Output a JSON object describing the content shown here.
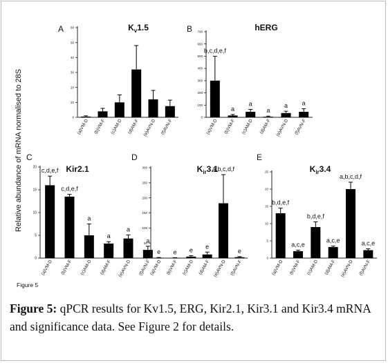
{
  "figure": {
    "bottom_label": "Figure 5",
    "y_axis_label": "Relative abundance of mRNA normalised to 28S",
    "caption_label": "Figure 5:",
    "caption_text": " qPCR results for Kv1.5, ERG, Kir2.1, Kir3.1 and Kir3.4 mRNA and significance data. See Figure 2 for details.",
    "colors": {
      "bar": "#000000",
      "axis": "#222222",
      "text": "#111111",
      "frame": "#b8bcc4"
    }
  },
  "chart_data": [
    {
      "type": "bar",
      "panel": "A",
      "title": "Kv1.5",
      "title_main": "K",
      "title_sub": "v",
      "title_rest": "1.5",
      "categories": [
        "(a)VM-D",
        "(b)VM-F",
        "(c)AM-D",
        "(d)AM-F",
        "(e)AVN-D",
        "(f)AVN-F"
      ],
      "values": [
        0.5,
        4,
        10,
        32,
        12,
        7.5
      ],
      "errors": [
        0.5,
        2,
        5,
        16,
        6,
        4
      ],
      "yticks": [
        0,
        10,
        20,
        30,
        40,
        50,
        60
      ],
      "ylim": [
        0,
        60
      ],
      "significance": [
        "",
        "",
        "",
        "",
        "",
        ""
      ]
    },
    {
      "type": "bar",
      "panel": "B",
      "title": "hERG",
      "title_main": "hERG",
      "title_sub": "",
      "title_rest": "",
      "categories": [
        "(a)VM-D",
        "(b)VM-F",
        "(c)AM-D",
        "(d)AM-F",
        "(e)AVN-D",
        "(f)AVN-F"
      ],
      "values": [
        300,
        15,
        45,
        5,
        35,
        45
      ],
      "errors": [
        200,
        8,
        20,
        5,
        15,
        25
      ],
      "yticks": [
        0,
        100,
        200,
        300,
        400,
        500,
        600,
        700
      ],
      "ylim": [
        0,
        700
      ],
      "significance": [
        "b,c,d,e,f",
        "a",
        "a",
        "a",
        "a",
        "a"
      ]
    },
    {
      "type": "bar",
      "panel": "C",
      "title": "Kir2.1",
      "title_main": "Kir2.1",
      "title_sub": "",
      "title_rest": "",
      "categories": [
        "(a)VM-D",
        "(b)VM-F",
        "(c)AM-D",
        "(d)AM-F",
        "(e)AVN-D",
        "(f)AVN-F"
      ],
      "values": [
        16,
        13.5,
        5,
        3.2,
        4.3,
        1.8
      ],
      "errors": [
        2,
        0.5,
        2.5,
        0.4,
        0.8,
        0.8
      ],
      "yticks": [
        0,
        5,
        10,
        15,
        20
      ],
      "ylim": [
        0,
        20
      ],
      "significance": [
        "c,d,e,f",
        "c,d,e,f",
        "a",
        "a",
        "a",
        "a"
      ]
    },
    {
      "type": "bar",
      "panel": "D",
      "title": "Kir3.1",
      "title_main": "K",
      "title_sub": "ir",
      "title_rest": "3.1",
      "categories": [
        "(a)VM-D",
        "(b)VM-F",
        "(c)AM-D",
        "(d)AM-F",
        "(e)AVN-D",
        "(f)AVN-F"
      ],
      "values": [
        1,
        1,
        5,
        12,
        182,
        3
      ],
      "errors": [
        1,
        0.5,
        3,
        8,
        95,
        2
      ],
      "yticks": [
        0,
        50,
        100,
        150,
        200,
        250,
        300
      ],
      "ylim": [
        0,
        300
      ],
      "significance": [
        "e",
        "e",
        "e",
        "e",
        "a,b,c,d,f",
        "e"
      ]
    },
    {
      "type": "bar",
      "panel": "E",
      "title": "Kir3.4",
      "title_main": "K",
      "title_sub": "ir",
      "title_rest": "3.4",
      "categories": [
        "(a)VM-D",
        "(b)VM-F",
        "(c)AM-D",
        "(d)AM-F",
        "(e)AVN-D",
        "(f)AVN-F"
      ],
      "values": [
        13,
        2,
        9,
        3.2,
        20,
        2.3
      ],
      "errors": [
        1.5,
        0.3,
        1.5,
        0.3,
        2,
        0.4
      ],
      "yticks": [
        0,
        5,
        10,
        15,
        20,
        25
      ],
      "ylim": [
        0,
        25
      ],
      "significance": [
        "b,d,e,f",
        "a,c,e",
        "b,d,e,f",
        "a,c,e",
        "a,b,c,d,f",
        "a,c,e"
      ]
    }
  ]
}
